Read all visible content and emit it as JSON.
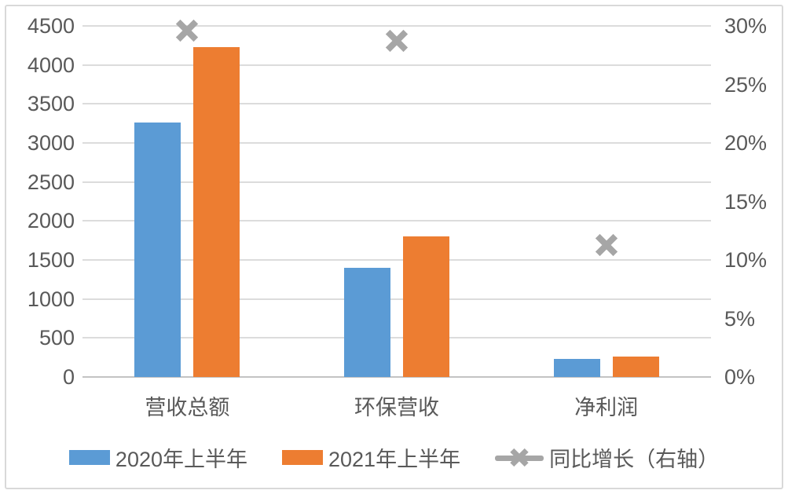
{
  "chart_data": {
    "type": "bar",
    "title": "",
    "categories": [
      "营收总额",
      "环保营收",
      "净利润"
    ],
    "category_keys": [
      "total-revenue",
      "env-revenue",
      "net-profit"
    ],
    "series": [
      {
        "key": "2020-h1",
        "name": "2020年上半年",
        "type": "bar",
        "axis": "left",
        "color": "#5B9BD5",
        "values": [
          3260,
          1400,
          233
        ]
      },
      {
        "key": "2021-h1",
        "name": "2021年上半年",
        "type": "bar",
        "axis": "left",
        "color": "#ED7D31",
        "values": [
          4230,
          1800,
          259
        ]
      },
      {
        "key": "yoy-growth",
        "name": "同比增长（右轴）",
        "type": "line-marker",
        "axis": "right",
        "color": "#A6A6A6",
        "values_pct": [
          29.6,
          28.7,
          11.3
        ]
      }
    ],
    "left_axis": {
      "min": 0,
      "max": 4500,
      "step": 500,
      "tick_labels": [
        "4500",
        "4000",
        "3500",
        "3000",
        "2500",
        "2000",
        "1500",
        "1000",
        "500",
        "0"
      ]
    },
    "right_axis": {
      "min": 0,
      "max": 30,
      "step": 5,
      "tick_labels": [
        "30%",
        "25%",
        "20%",
        "15%",
        "10%",
        "5%",
        "0%"
      ]
    },
    "grid": true,
    "legend_position": "bottom"
  },
  "colors": {
    "bar_2020": "#5B9BD5",
    "bar_2021": "#ED7D31",
    "marker": "#A6A6A6",
    "text": "#595959",
    "gridline": "#DCDCDC",
    "axis_line": "#C3C3C3",
    "border": "#D9D9D9",
    "background": "#FFFFFF"
  }
}
